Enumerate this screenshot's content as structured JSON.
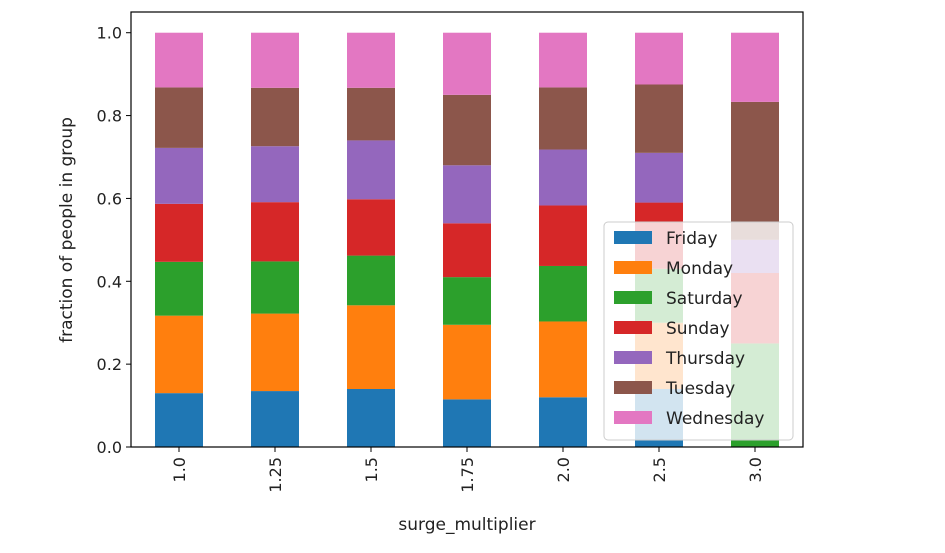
{
  "chart_data": {
    "type": "bar",
    "stacked": true,
    "xlabel": "surge_multiplier",
    "ylabel": "fraction of people in group",
    "ylim": [
      0,
      1.05
    ],
    "yticks": [
      "0.0",
      "0.2",
      "0.4",
      "0.6",
      "0.8",
      "1.0"
    ],
    "categories": [
      "1.0",
      "1.25",
      "1.5",
      "1.75",
      "2.0",
      "2.5",
      "3.0"
    ],
    "legend_position": "lower-right",
    "grid": false,
    "series": [
      {
        "name": "Friday",
        "color": "#1f77b4",
        "values": [
          0.13,
          0.135,
          0.14,
          0.115,
          0.12,
          0.14,
          0.0
        ]
      },
      {
        "name": "Monday",
        "color": "#ff7f0e",
        "values": [
          0.187,
          0.187,
          0.202,
          0.18,
          0.183,
          0.16,
          0.0
        ]
      },
      {
        "name": "Saturday",
        "color": "#2ca02c",
        "values": [
          0.13,
          0.126,
          0.12,
          0.115,
          0.134,
          0.13,
          0.25
        ]
      },
      {
        "name": "Sunday",
        "color": "#d62728",
        "values": [
          0.14,
          0.143,
          0.136,
          0.13,
          0.146,
          0.16,
          0.17
        ]
      },
      {
        "name": "Thursday",
        "color": "#9467bd",
        "values": [
          0.135,
          0.135,
          0.142,
          0.14,
          0.135,
          0.12,
          0.08
        ]
      },
      {
        "name": "Tuesday",
        "color": "#8c564b",
        "values": [
          0.146,
          0.141,
          0.127,
          0.17,
          0.15,
          0.165,
          0.333
        ]
      },
      {
        "name": "Wednesday",
        "color": "#e377c2",
        "values": [
          0.132,
          0.133,
          0.133,
          0.15,
          0.132,
          0.125,
          0.167
        ]
      }
    ]
  }
}
